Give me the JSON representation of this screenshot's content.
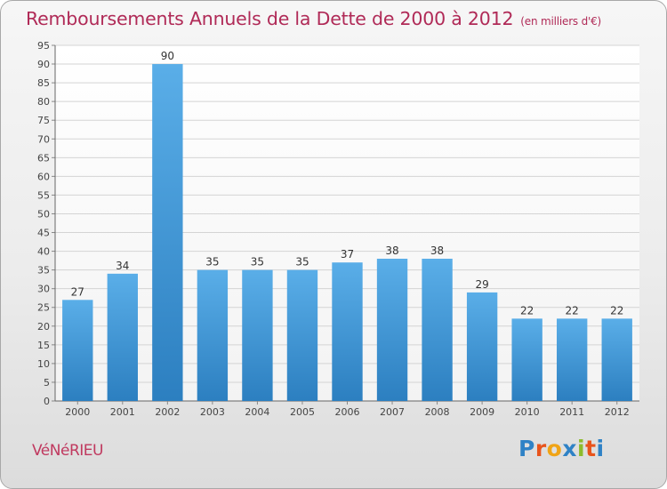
{
  "header": {
    "title": "Remboursements Annuels de la Dette de 2000 à 2012",
    "unit": "(en milliers d'€)"
  },
  "footer": {
    "commune": "VéNéRIEU",
    "brand": "Proxiti",
    "brand_letters": [
      {
        "char": "P",
        "color": "#2f82c6"
      },
      {
        "char": "r",
        "color": "#e8541c"
      },
      {
        "char": "o",
        "color": "#f0a416"
      },
      {
        "char": "x",
        "color": "#2f82c6"
      },
      {
        "char": "i",
        "color": "#8dbb2c"
      },
      {
        "char": "t",
        "color": "#e8541c"
      },
      {
        "char": "i",
        "color": "#2f82c6"
      }
    ]
  },
  "chart_data": {
    "type": "bar",
    "title": "Remboursements Annuels de la Dette de 2000 à 2012",
    "xlabel": "",
    "ylabel": "",
    "categories": [
      "2000",
      "2001",
      "2002",
      "2003",
      "2004",
      "2005",
      "2006",
      "2007",
      "2008",
      "2009",
      "2010",
      "2011",
      "2012"
    ],
    "values": [
      27,
      34,
      90,
      35,
      35,
      35,
      37,
      38,
      38,
      29,
      22,
      22,
      22
    ],
    "ylim": [
      0,
      95
    ],
    "yticks": [
      0,
      5,
      10,
      15,
      20,
      25,
      30,
      35,
      40,
      45,
      50,
      55,
      60,
      65,
      70,
      75,
      80,
      85,
      90,
      95
    ],
    "grid": true,
    "bar_color_top": "#5aaee8",
    "bar_color_bottom": "#2c7fc0"
  }
}
